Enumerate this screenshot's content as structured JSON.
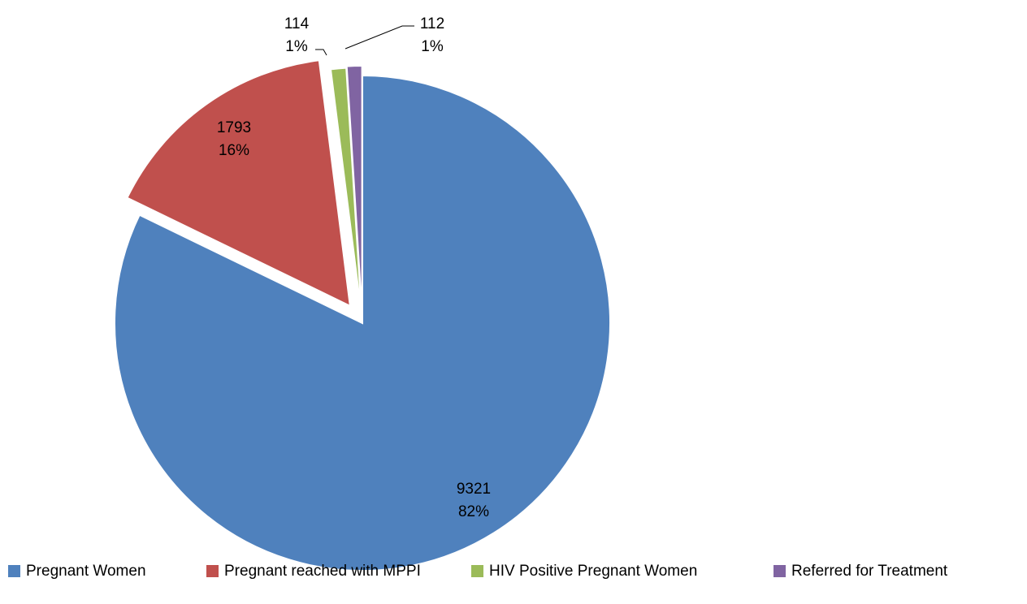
{
  "chart_data": {
    "type": "pie",
    "categories": [
      "Pregnant Women",
      "Pregnant reached with MPPI",
      "HIV Positive Pregnant Women",
      "Referred for Treatment"
    ],
    "values": [
      9321,
      1793,
      114,
      112
    ],
    "percent_labels": [
      "82%",
      "16%",
      "1%",
      "1%"
    ],
    "colors": [
      "#4f81bd",
      "#c0504d",
      "#9bbb59",
      "#8064a2"
    ],
    "legend": "bottom"
  }
}
